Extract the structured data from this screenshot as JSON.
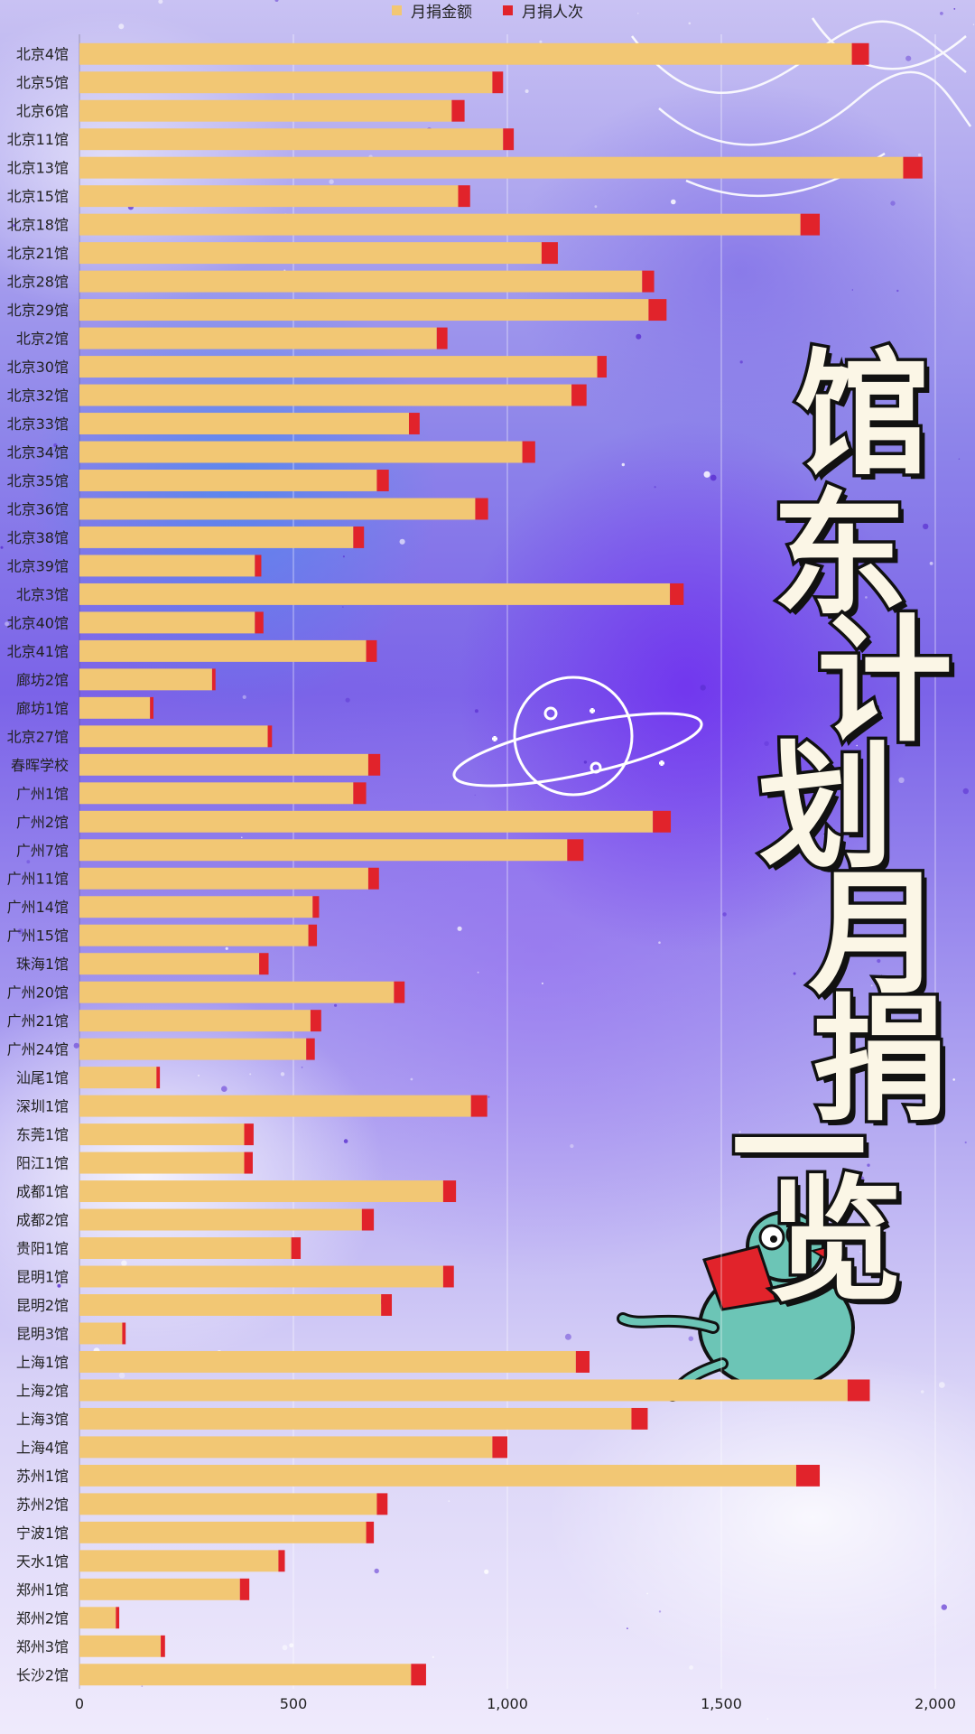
{
  "title_chars": [
    "馆",
    "东",
    "计",
    "划",
    "月",
    "捐",
    "一",
    "览"
  ],
  "colors": {
    "amount": "#f2c774",
    "count": "#e1232b"
  },
  "chart_data": {
    "type": "bar",
    "orientation": "horizontal",
    "stacked": true,
    "legend": {
      "position": "top-center"
    },
    "grid": true,
    "xlim": [
      0,
      2000
    ],
    "x_ticks": [
      "0",
      "500",
      "1,000",
      "1,500",
      "2,000"
    ],
    "x_tick_values": [
      0,
      500,
      1000,
      1500,
      2000
    ],
    "categories": [
      "北京4馆",
      "北京5馆",
      "北京6馆",
      "北京11馆",
      "北京13馆",
      "北京15馆",
      "北京18馆",
      "北京21馆",
      "北京28馆",
      "北京29馆",
      "北京2馆",
      "北京30馆",
      "北京32馆",
      "北京33馆",
      "北京34馆",
      "北京35馆",
      "北京36馆",
      "北京38馆",
      "北京39馆",
      "北京3馆",
      "北京40馆",
      "北京41馆",
      "廊坊2馆",
      "廊坊1馆",
      "北京27馆",
      "春晖学校",
      "广州1馆",
      "广州2馆",
      "广州7馆",
      "广州11馆",
      "广州14馆",
      "广州15馆",
      "珠海1馆",
      "广州20馆",
      "广州21馆",
      "广州24馆",
      "汕尾1馆",
      "深圳1馆",
      "东莞1馆",
      "阳江1馆",
      "成都1馆",
      "成都2馆",
      "贵阳1馆",
      "昆明1馆",
      "昆明2馆",
      "昆明3馆",
      "上海1馆",
      "上海2馆",
      "上海3馆",
      "上海4馆",
      "苏州1馆",
      "苏州2馆",
      "宁波1馆",
      "天水1馆",
      "郑州1馆",
      "郑州2馆",
      "郑州3馆",
      "长沙2馆"
    ],
    "series": [
      {
        "name": "月捐金额",
        "values": [
          1805,
          965,
          870,
          990,
          1925,
          885,
          1685,
          1080,
          1315,
          1330,
          835,
          1210,
          1150,
          770,
          1035,
          695,
          925,
          640,
          410,
          1380,
          410,
          670,
          310,
          165,
          440,
          675,
          640,
          1340,
          1140,
          675,
          545,
          535,
          420,
          735,
          540,
          530,
          180,
          915,
          385,
          385,
          850,
          660,
          495,
          850,
          705,
          100,
          1160,
          1795,
          1290,
          965,
          1675,
          695,
          670,
          465,
          375,
          85,
          190,
          775
        ]
      },
      {
        "name": "月捐人次",
        "values": [
          40,
          25,
          30,
          25,
          45,
          28,
          45,
          38,
          28,
          42,
          25,
          22,
          35,
          25,
          30,
          28,
          30,
          25,
          15,
          32,
          20,
          25,
          8,
          8,
          10,
          28,
          30,
          42,
          38,
          25,
          15,
          20,
          22,
          25,
          25,
          20,
          8,
          38,
          22,
          20,
          30,
          28,
          22,
          25,
          25,
          8,
          32,
          52,
          38,
          35,
          55,
          25,
          18,
          15,
          22,
          8,
          10,
          35
        ]
      }
    ]
  }
}
